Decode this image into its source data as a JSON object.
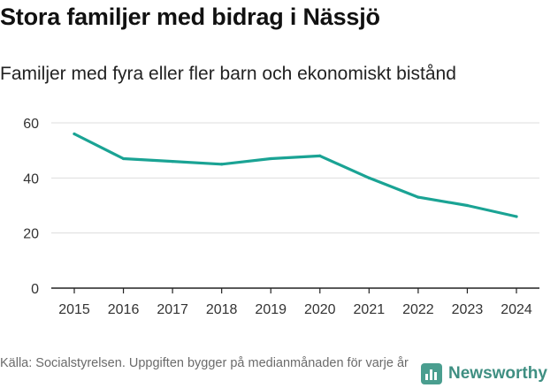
{
  "title": "Stora familjer med bidrag i Nässjö",
  "subtitle": "Familjer med fyra eller fler barn och ekonomiskt bistånd",
  "source": "Källa: Socialstyrelsen. Uppgiften bygger på medianmånaden för varje år",
  "brand": "Newsworthy",
  "colors": {
    "line": "#1aa394",
    "grid": "#dddddd",
    "axis": "#222222"
  },
  "chart_data": {
    "type": "line",
    "categories": [
      "2015",
      "2016",
      "2017",
      "2018",
      "2019",
      "2020",
      "2021",
      "2022",
      "2023",
      "2024"
    ],
    "series": [
      {
        "name": "Familjer med fyra eller fler barn och ekonomiskt bistånd",
        "values": [
          56,
          47,
          46,
          45,
          47,
          48,
          40,
          33,
          30,
          26
        ]
      }
    ],
    "yticks": [
      0,
      20,
      40,
      60
    ],
    "ylim": [
      0,
      60
    ],
    "grid": true,
    "xlabel": "",
    "ylabel": ""
  }
}
